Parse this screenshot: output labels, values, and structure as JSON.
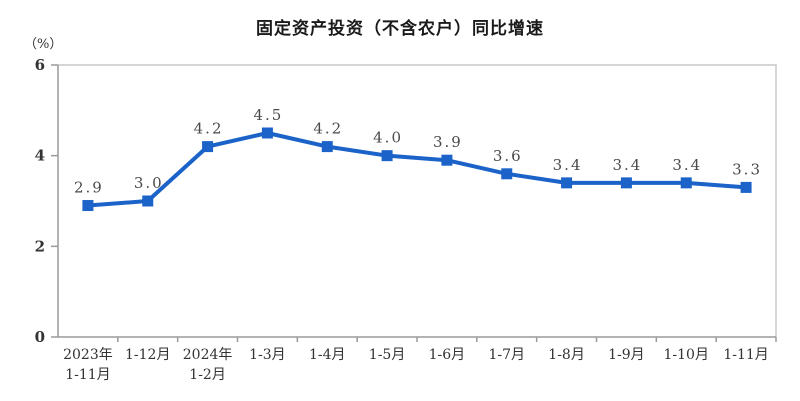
{
  "chart_data": {
    "type": "line",
    "title": "固定资产投资（不含农户）同比增速",
    "ylabel": "（%）",
    "xlabel": "",
    "categories": [
      "2023年\n1-11月",
      "1-12月",
      "2024年\n1-2月",
      "1-3月",
      "1-4月",
      "1-5月",
      "1-6月",
      "1-7月",
      "1-8月",
      "1-9月",
      "1-10月",
      "1-11月"
    ],
    "values": [
      2.9,
      3.0,
      4.2,
      4.5,
      4.2,
      4.0,
      3.9,
      3.6,
      3.4,
      3.4,
      3.4,
      3.3
    ],
    "labels": [
      "2.9",
      "3.0",
      "4.2",
      "4.5",
      "4.2",
      "4.0",
      "3.9",
      "3.6",
      "3.4",
      "3.4",
      "3.4",
      "3.3"
    ],
    "ylim": [
      0,
      6
    ],
    "yticks": [
      0,
      2,
      4,
      6
    ],
    "grid": false,
    "legend": "none",
    "line_color": "#1b63c8",
    "marker": "square",
    "axis_color": "#9a9a9a",
    "border_color": "#c8c8c8"
  }
}
